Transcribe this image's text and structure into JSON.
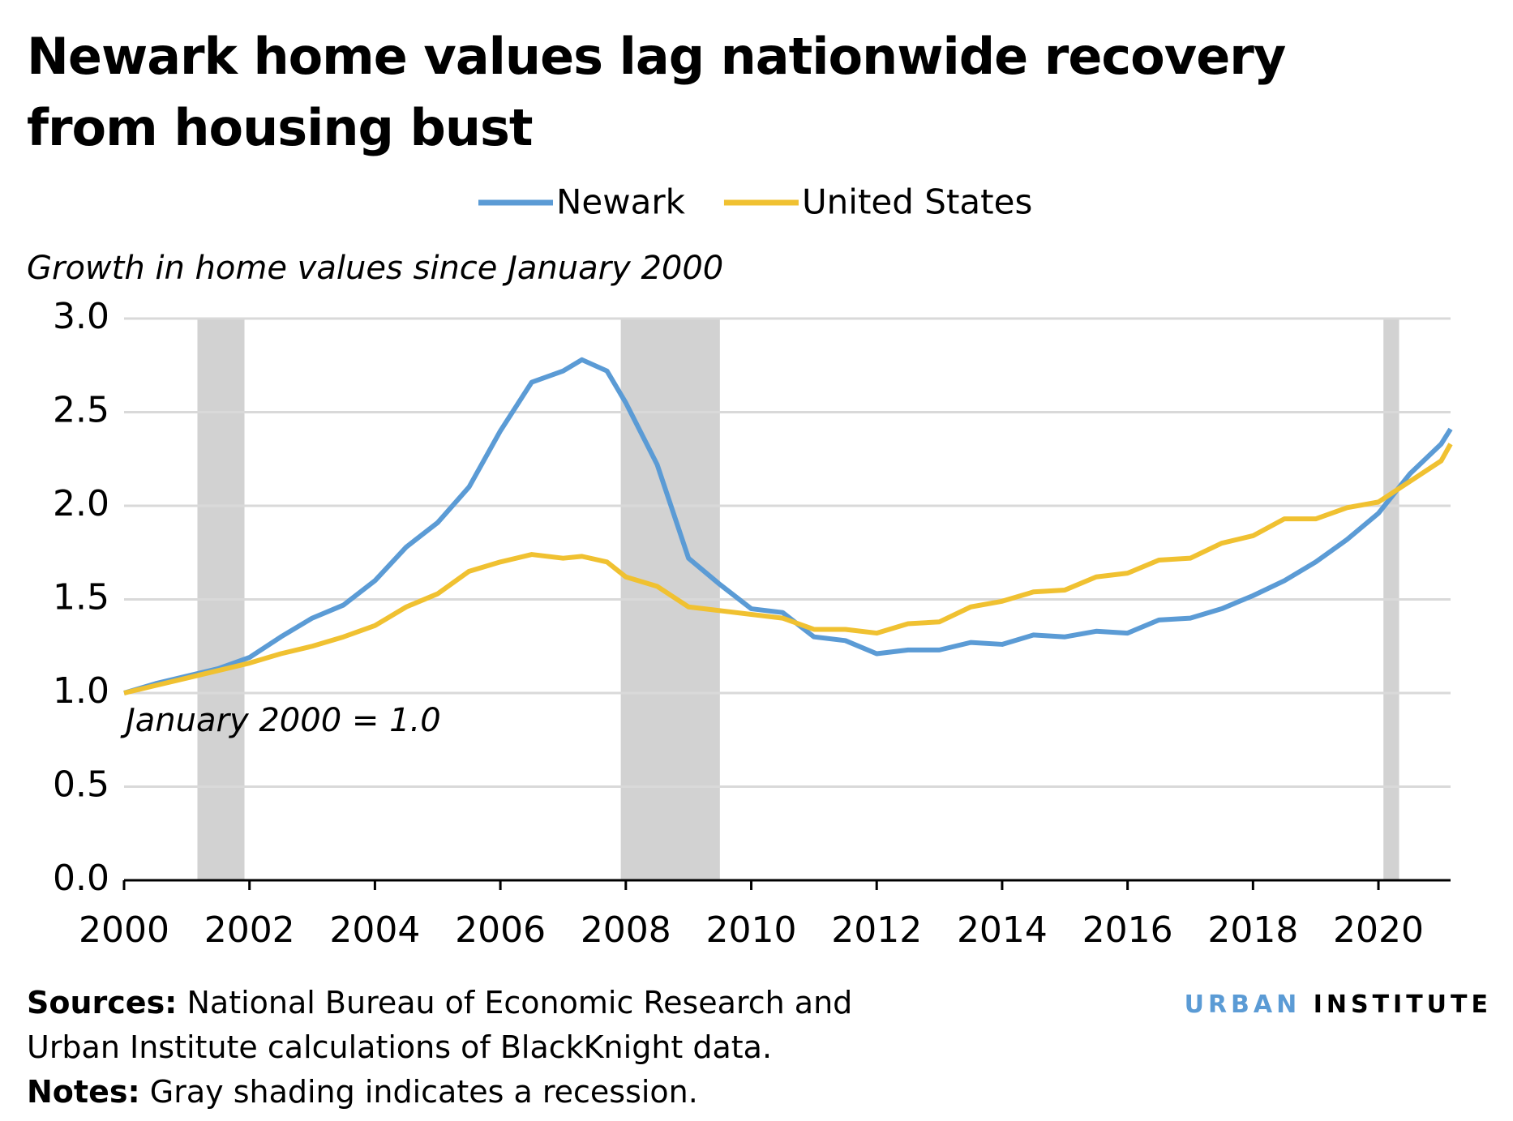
{
  "chart_data": {
    "type": "line",
    "title": "Newark home values lag nationwide recovery from housing bust",
    "y_label": "Growth in home values since January 2000",
    "annotation": "January 2000 = 1.0",
    "xlim": [
      2000,
      2021.15
    ],
    "xticks": [
      2000,
      2002,
      2004,
      2006,
      2008,
      2010,
      2012,
      2014,
      2016,
      2018,
      2020
    ],
    "ylim": [
      0,
      3
    ],
    "yticks": [
      {
        "value": 0,
        "label": "0.0"
      },
      0.5,
      {
        "value": 1,
        "label": "1.0"
      },
      1.5,
      {
        "value": 2,
        "label": "2.0"
      },
      2.5,
      {
        "value": 3,
        "label": "3.0"
      }
    ],
    "grid": true,
    "recession_color": "#d2d2d2",
    "recessions": [
      [
        2001.17,
        2001.92
      ],
      [
        2007.92,
        2009.5
      ],
      [
        2020.08,
        2020.33
      ]
    ],
    "x": [
      2000,
      2000.5,
      2001,
      2001.5,
      2002,
      2002.5,
      2003,
      2003.5,
      2004,
      2004.5,
      2005,
      2005.5,
      2006,
      2006.5,
      2007,
      2007.3,
      2007.7,
      2008,
      2008.5,
      2009,
      2009.5,
      2010,
      2010.5,
      2011,
      2011.5,
      2012,
      2012.5,
      2013,
      2013.5,
      2014,
      2014.5,
      2015,
      2015.5,
      2016,
      2016.5,
      2017,
      2017.5,
      2018,
      2018.5,
      2019,
      2019.5,
      2020,
      2020.5,
      2021,
      2021.15
    ],
    "series": [
      {
        "name": "Newark",
        "color": "#5b9bd5",
        "values": [
          1.0,
          1.05,
          1.09,
          1.13,
          1.19,
          1.3,
          1.4,
          1.47,
          1.6,
          1.78,
          1.91,
          2.1,
          2.4,
          2.66,
          2.72,
          2.78,
          2.72,
          2.55,
          2.22,
          1.72,
          1.58,
          1.45,
          1.43,
          1.3,
          1.28,
          1.21,
          1.23,
          1.23,
          1.27,
          1.26,
          1.31,
          1.3,
          1.33,
          1.32,
          1.39,
          1.4,
          1.45,
          1.52,
          1.6,
          1.7,
          1.82,
          1.96,
          2.17,
          2.33,
          2.41
        ]
      },
      {
        "name": "United States",
        "color": "#f0c131",
        "values": [
          1.0,
          1.04,
          1.08,
          1.12,
          1.16,
          1.21,
          1.25,
          1.3,
          1.36,
          1.46,
          1.53,
          1.65,
          1.7,
          1.74,
          1.72,
          1.73,
          1.7,
          1.62,
          1.57,
          1.46,
          1.44,
          1.42,
          1.4,
          1.34,
          1.34,
          1.32,
          1.37,
          1.38,
          1.46,
          1.49,
          1.54,
          1.55,
          1.62,
          1.64,
          1.71,
          1.72,
          1.8,
          1.84,
          1.93,
          1.93,
          1.99,
          2.02,
          2.13,
          2.24,
          2.33
        ]
      }
    ]
  },
  "footer": {
    "sources_label": "Sources:",
    "sources": "National Bureau of Economic Research and Urban Institute calculations of BlackKnight data.",
    "notes_label": "Notes:",
    "notes": "Gray shading indicates a recession.",
    "logo_first": "URBAN",
    "logo_second": "INSTITUTE"
  }
}
